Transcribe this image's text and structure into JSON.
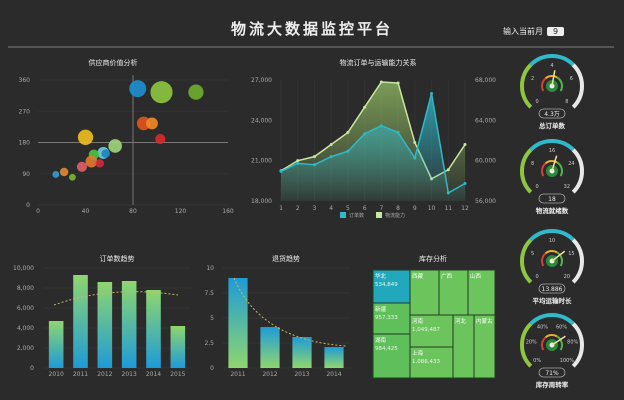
{
  "header": {
    "title": "物流大数据监控平台",
    "month_label": "输入当前月",
    "month_value": "9"
  },
  "colors": {
    "bg": "#2b2b2b",
    "teal": "#2fb9c9",
    "green": "#8fd06a",
    "blue": "#1e9bd7",
    "lime": "#8dc63f"
  },
  "chart_data": [
    {
      "type": "scatter",
      "title": "供应商价值分析",
      "xlim": [
        0,
        160
      ],
      "ylim": [
        0,
        360
      ],
      "xticks": [
        "0",
        "40",
        "80",
        "120",
        "160"
      ],
      "yticks": [
        "0",
        "90",
        "180",
        "270",
        "360"
      ],
      "crosshair": {
        "x": 80,
        "y": 180
      },
      "points": [
        {
          "x": 84,
          "y": 335,
          "size": 10,
          "color": "#1e8fd0"
        },
        {
          "x": 104,
          "y": 325,
          "size": 13,
          "color": "#8dc63f"
        },
        {
          "x": 133,
          "y": 325,
          "size": 9,
          "color": "#6fae2f"
        },
        {
          "x": 89,
          "y": 235,
          "size": 8,
          "color": "#e2541f"
        },
        {
          "x": 96,
          "y": 235,
          "size": 7,
          "color": "#f28a26"
        },
        {
          "x": 103,
          "y": 190,
          "size": 6,
          "color": "#d92a2a"
        },
        {
          "x": 40,
          "y": 195,
          "size": 9,
          "color": "#f0c020"
        },
        {
          "x": 65,
          "y": 170,
          "size": 8,
          "color": "#9fd67a"
        },
        {
          "x": 55,
          "y": 150,
          "size": 7,
          "color": "#6fd0e8"
        },
        {
          "x": 57,
          "y": 148,
          "size": 5,
          "color": "#1e7fc0"
        },
        {
          "x": 47,
          "y": 145,
          "size": 6,
          "color": "#4ec43a"
        },
        {
          "x": 45,
          "y": 125,
          "size": 7,
          "color": "#e07a30"
        },
        {
          "x": 52,
          "y": 120,
          "size": 5,
          "color": "#d02a3a"
        },
        {
          "x": 37,
          "y": 110,
          "size": 6,
          "color": "#e0606a"
        },
        {
          "x": 22,
          "y": 95,
          "size": 5,
          "color": "#e08a30"
        },
        {
          "x": 15,
          "y": 88,
          "size": 4,
          "color": "#2fa0d8"
        },
        {
          "x": 29,
          "y": 80,
          "size": 4,
          "color": "#7ab82a"
        }
      ]
    },
    {
      "type": "line",
      "title": "物流订单与运输能力关系",
      "x": [
        1,
        2,
        3,
        4,
        5,
        6,
        7,
        8,
        9,
        10,
        11,
        12
      ],
      "ylim": [
        18000,
        27000
      ],
      "yticks": [
        "18,000",
        "21,000",
        "24,000",
        "27,000"
      ],
      "y2lim": [
        56000,
        68000
      ],
      "y2ticks": [
        "56,000",
        "60,000",
        "64,000",
        "68,000"
      ],
      "series": [
        {
          "name": "订单数",
          "axis": "left",
          "color": "#2fb9c9",
          "values": [
            20200,
            20800,
            20700,
            21300,
            21700,
            23000,
            23600,
            23100,
            21200,
            26000,
            18600,
            19300
          ]
        },
        {
          "name": "物流能力",
          "axis": "right",
          "color": "#c8e6a0",
          "values": [
            59000,
            60000,
            60400,
            61600,
            62800,
            65300,
            67800,
            67700,
            61800,
            58200,
            59100,
            61600
          ]
        }
      ],
      "legend": "bottom"
    },
    {
      "type": "bar",
      "title": "订单数趋势",
      "categories": [
        "2010",
        "2011",
        "2012",
        "2013",
        "2014",
        "2015"
      ],
      "values": [
        4700,
        9300,
        8600,
        8700,
        7800,
        4200
      ],
      "ylim": [
        0,
        10000
      ],
      "yticks": [
        "0",
        "2,000",
        "4,000",
        "6,000",
        "8,000",
        "10,000"
      ],
      "trendline": "dashed"
    },
    {
      "type": "bar",
      "title": "退货趋势",
      "categories": [
        "2011",
        "2012",
        "2013",
        "2014"
      ],
      "values": [
        9,
        4.1,
        3.1,
        2.1
      ],
      "ylim": [
        0,
        10
      ],
      "yticks": [
        "0",
        "2.5",
        "5",
        "7.5",
        "10"
      ],
      "trendline": "dashed"
    }
  ],
  "treemap": {
    "title": "库存分析",
    "cells": [
      {
        "name": "华北",
        "value": "534,849",
        "color": "#22a8bd"
      },
      {
        "name": "新疆",
        "value": "957,333",
        "color": "#5fbf5a"
      },
      {
        "name": "湖南",
        "value": "984,425",
        "color": "#5fbf5a"
      },
      {
        "name": "西藏",
        "value": "",
        "color": "#6cc45c"
      },
      {
        "name": "广西",
        "value": "",
        "color": "#6cc45c"
      },
      {
        "name": "山西",
        "value": "",
        "color": "#6cc45c"
      },
      {
        "name": "河南",
        "value": "1,049,487",
        "color": "#6cc45c"
      },
      {
        "name": "上海",
        "value": "1,086,433",
        "color": "#6cc45c"
      },
      {
        "name": "河北",
        "value": "",
        "color": "#6cc45c"
      },
      {
        "name": "内蒙古",
        "value": "",
        "color": "#6cc45c"
      }
    ]
  },
  "gauges": [
    {
      "label": "总订单数",
      "display": "4.3万",
      "value": 4.3,
      "max": 8,
      "ticks": [
        "0",
        "2",
        "4",
        "6",
        "8"
      ]
    },
    {
      "label": "物流就绪数",
      "display": "18",
      "value": 18,
      "max": 32,
      "ticks": [
        "0",
        "8",
        "16",
        "24",
        "32"
      ]
    },
    {
      "label": "平均运输时长",
      "display": "13.886",
      "value": 13.886,
      "max": 20,
      "ticks": [
        "0",
        "5",
        "10",
        "15",
        "20"
      ]
    },
    {
      "label": "库存周转率",
      "display": "71%",
      "value": 71,
      "max": 100,
      "ticks": [
        "0%",
        "20%",
        "40%",
        "60%",
        "80%",
        "100%"
      ]
    }
  ]
}
